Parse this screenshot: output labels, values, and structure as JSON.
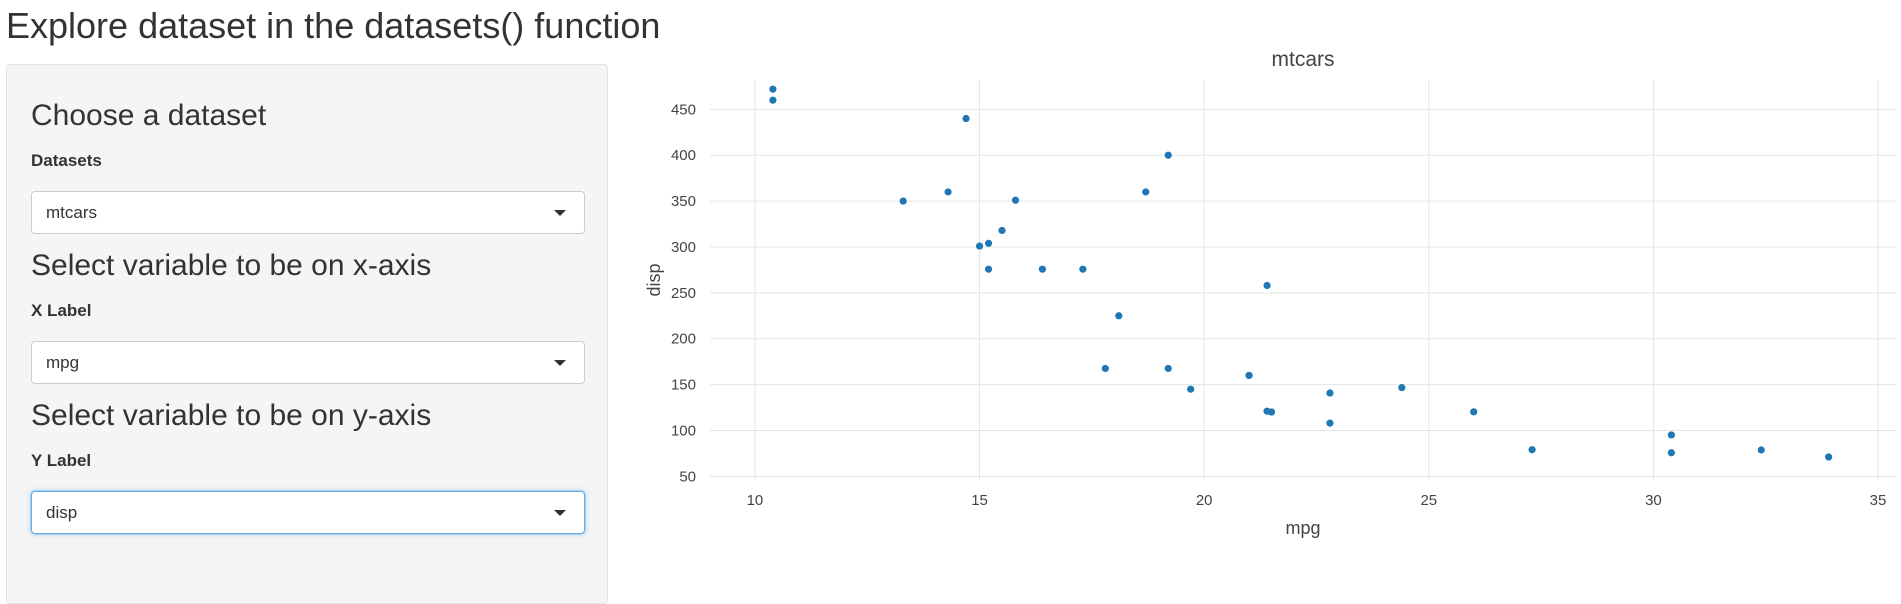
{
  "page": {
    "title": "Explore dataset in the datasets() function"
  },
  "sidebar": {
    "dataset_section": {
      "heading": "Choose a dataset",
      "label": "Datasets",
      "selected": "mtcars"
    },
    "x_section": {
      "heading": "Select variable to be on x-axis",
      "label": "X Label",
      "selected": "mpg"
    },
    "y_section": {
      "heading": "Select variable to be on y-axis",
      "label": "Y Label",
      "selected": "disp"
    }
  },
  "colors": {
    "marker": "#1f77b4",
    "grid": "#e5e5e5",
    "sidebar_bg": "#f5f5f5",
    "focus_border": "#66afe9"
  },
  "chart_data": {
    "type": "scatter",
    "title": "mtcars",
    "xlabel": "mpg",
    "ylabel": "disp",
    "xlim": [
      9.0,
      35.4
    ],
    "ylim": [
      46,
      482
    ],
    "xticks": [
      10,
      15,
      20,
      25,
      30,
      35
    ],
    "yticks": [
      50,
      100,
      150,
      200,
      250,
      300,
      350,
      400,
      450
    ],
    "grid": true,
    "legend": "none",
    "points": [
      {
        "x": 21.0,
        "y": 160
      },
      {
        "x": 21.0,
        "y": 160
      },
      {
        "x": 22.8,
        "y": 108
      },
      {
        "x": 21.4,
        "y": 258
      },
      {
        "x": 18.7,
        "y": 360
      },
      {
        "x": 18.1,
        "y": 225
      },
      {
        "x": 14.3,
        "y": 360
      },
      {
        "x": 24.4,
        "y": 146.7
      },
      {
        "x": 22.8,
        "y": 140.8
      },
      {
        "x": 19.2,
        "y": 167.6
      },
      {
        "x": 17.8,
        "y": 167.6
      },
      {
        "x": 16.4,
        "y": 275.8
      },
      {
        "x": 17.3,
        "y": 275.8
      },
      {
        "x": 15.2,
        "y": 275.8
      },
      {
        "x": 10.4,
        "y": 472
      },
      {
        "x": 10.4,
        "y": 460
      },
      {
        "x": 14.7,
        "y": 440
      },
      {
        "x": 32.4,
        "y": 78.7
      },
      {
        "x": 30.4,
        "y": 75.7
      },
      {
        "x": 33.9,
        "y": 71.1
      },
      {
        "x": 21.5,
        "y": 120.1
      },
      {
        "x": 15.5,
        "y": 318
      },
      {
        "x": 15.2,
        "y": 304
      },
      {
        "x": 13.3,
        "y": 350
      },
      {
        "x": 19.2,
        "y": 400
      },
      {
        "x": 27.3,
        "y": 79
      },
      {
        "x": 26.0,
        "y": 120.3
      },
      {
        "x": 30.4,
        "y": 95.1
      },
      {
        "x": 15.8,
        "y": 351
      },
      {
        "x": 19.7,
        "y": 145
      },
      {
        "x": 15.0,
        "y": 301
      },
      {
        "x": 21.4,
        "y": 121
      }
    ]
  }
}
